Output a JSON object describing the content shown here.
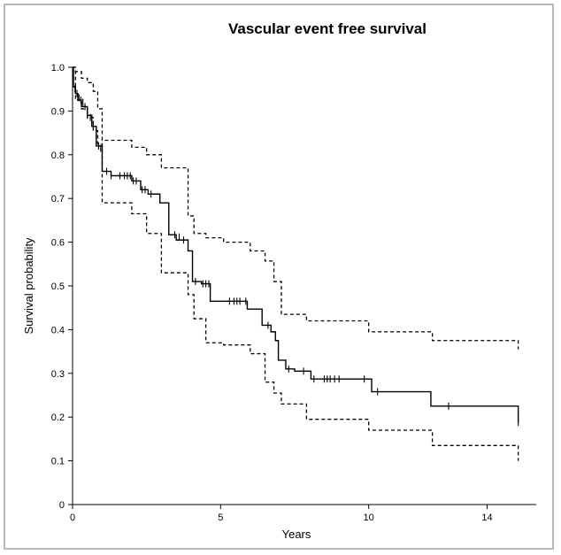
{
  "chart_data": {
    "type": "line",
    "title": "Vascular event free survival",
    "xlabel": "Years",
    "ylabel": "Survival probability",
    "xlim": [
      0,
      15.06
    ],
    "ylim": [
      0,
      1.0
    ],
    "x_ticks": [
      0,
      5,
      10,
      14
    ],
    "y_ticks": [
      0,
      0.1,
      0.2,
      0.3,
      0.4,
      0.5,
      0.6,
      0.7,
      0.8,
      0.9,
      1.0
    ],
    "x_tick_labels": [
      "0",
      "5",
      "10",
      "14"
    ],
    "y_tick_labels": [
      "0",
      "0.1",
      "0.2",
      "0.3",
      "0.4",
      "0.5",
      "0.6",
      "0.7",
      "0.8",
      "0.9",
      "1.0"
    ],
    "grid": false,
    "series": [
      {
        "style": "solid",
        "x": [
          0,
          0.03,
          0.1,
          0.18,
          0.3,
          0.5,
          0.65,
          0.8,
          1.0,
          1.3,
          2.0,
          2.3,
          2.55,
          2.95,
          3.25,
          3.5,
          3.9,
          4.05,
          4.35,
          4.65,
          5.2,
          5.9,
          6.4,
          6.7,
          6.85,
          6.95,
          7.2,
          7.5,
          8.05,
          10.1,
          12.1,
          12.7,
          15.05
        ],
        "y": [
          1.0,
          0.955,
          0.94,
          0.925,
          0.91,
          0.89,
          0.865,
          0.82,
          0.762,
          0.752,
          0.74,
          0.72,
          0.71,
          0.69,
          0.617,
          0.605,
          0.58,
          0.51,
          0.505,
          0.465,
          0.465,
          0.447,
          0.41,
          0.395,
          0.375,
          0.33,
          0.31,
          0.305,
          0.287,
          0.258,
          0.225,
          0.225,
          0.188
        ]
      },
      {
        "style": "dashed",
        "name_hint": "upper",
        "x": [
          0,
          0.1,
          0.3,
          0.5,
          0.7,
          0.85,
          1.0,
          2.0,
          2.5,
          3.0,
          3.9,
          4.1,
          4.5,
          5.1,
          6.0,
          6.5,
          6.8,
          7.05,
          7.9,
          10.0,
          12.15,
          15.05
        ],
        "y": [
          1.0,
          0.99,
          0.975,
          0.965,
          0.945,
          0.905,
          0.833,
          0.817,
          0.8,
          0.77,
          0.66,
          0.62,
          0.61,
          0.6,
          0.58,
          0.557,
          0.51,
          0.435,
          0.42,
          0.395,
          0.375,
          0.355
        ]
      },
      {
        "style": "dashed",
        "name_hint": "lower",
        "x": [
          0,
          0.1,
          0.3,
          0.5,
          0.7,
          0.85,
          1.0,
          2.0,
          2.5,
          3.0,
          3.9,
          4.1,
          4.5,
          5.1,
          6.0,
          6.5,
          6.8,
          7.05,
          7.9,
          10.0,
          12.15,
          15.05
        ],
        "y": [
          1.0,
          0.925,
          0.905,
          0.885,
          0.855,
          0.825,
          0.69,
          0.665,
          0.62,
          0.53,
          0.48,
          0.425,
          0.37,
          0.365,
          0.345,
          0.28,
          0.255,
          0.23,
          0.195,
          0.17,
          0.135,
          0.1
        ]
      }
    ],
    "censor_marks": {
      "x": [
        0.08,
        0.15,
        0.22,
        0.28,
        0.35,
        0.42,
        0.5,
        0.6,
        0.7,
        0.88,
        0.95,
        1.15,
        1.3,
        1.6,
        1.75,
        1.85,
        1.95,
        2.05,
        2.15,
        2.35,
        2.45,
        2.65,
        3.45,
        3.6,
        3.75,
        4.15,
        4.4,
        4.5,
        4.6,
        5.3,
        5.45,
        5.55,
        5.65,
        5.85,
        6.6,
        7.3,
        7.8,
        8.15,
        8.5,
        8.6,
        8.7,
        8.85,
        9.0,
        9.85,
        10.3,
        12.7,
        15.05
      ],
      "y": [
        0.95,
        0.94,
        0.93,
        0.925,
        0.92,
        0.91,
        0.89,
        0.885,
        0.865,
        0.82,
        0.815,
        0.762,
        0.752,
        0.752,
        0.752,
        0.752,
        0.752,
        0.74,
        0.74,
        0.72,
        0.72,
        0.71,
        0.617,
        0.612,
        0.605,
        0.51,
        0.505,
        0.505,
        0.505,
        0.465,
        0.465,
        0.465,
        0.465,
        0.465,
        0.41,
        0.31,
        0.305,
        0.287,
        0.287,
        0.287,
        0.287,
        0.287,
        0.287,
        0.287,
        0.258,
        0.225,
        0.188
      ]
    },
    "colors": {
      "line": "#000000",
      "frame": "#b8b8b8"
    }
  }
}
